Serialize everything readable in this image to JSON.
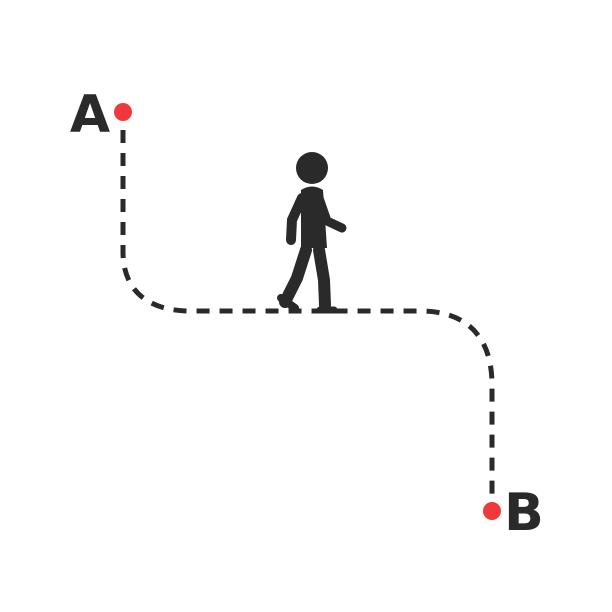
{
  "diagram": {
    "start_label": "A",
    "end_label": "B",
    "colors": {
      "path": "#2a2a2a",
      "endpoint": "#f0393c",
      "figure": "#2a2a2a",
      "label": "#2a2a2a",
      "background": "#ffffff"
    },
    "icons": {
      "figure": "walking-person-icon"
    }
  }
}
